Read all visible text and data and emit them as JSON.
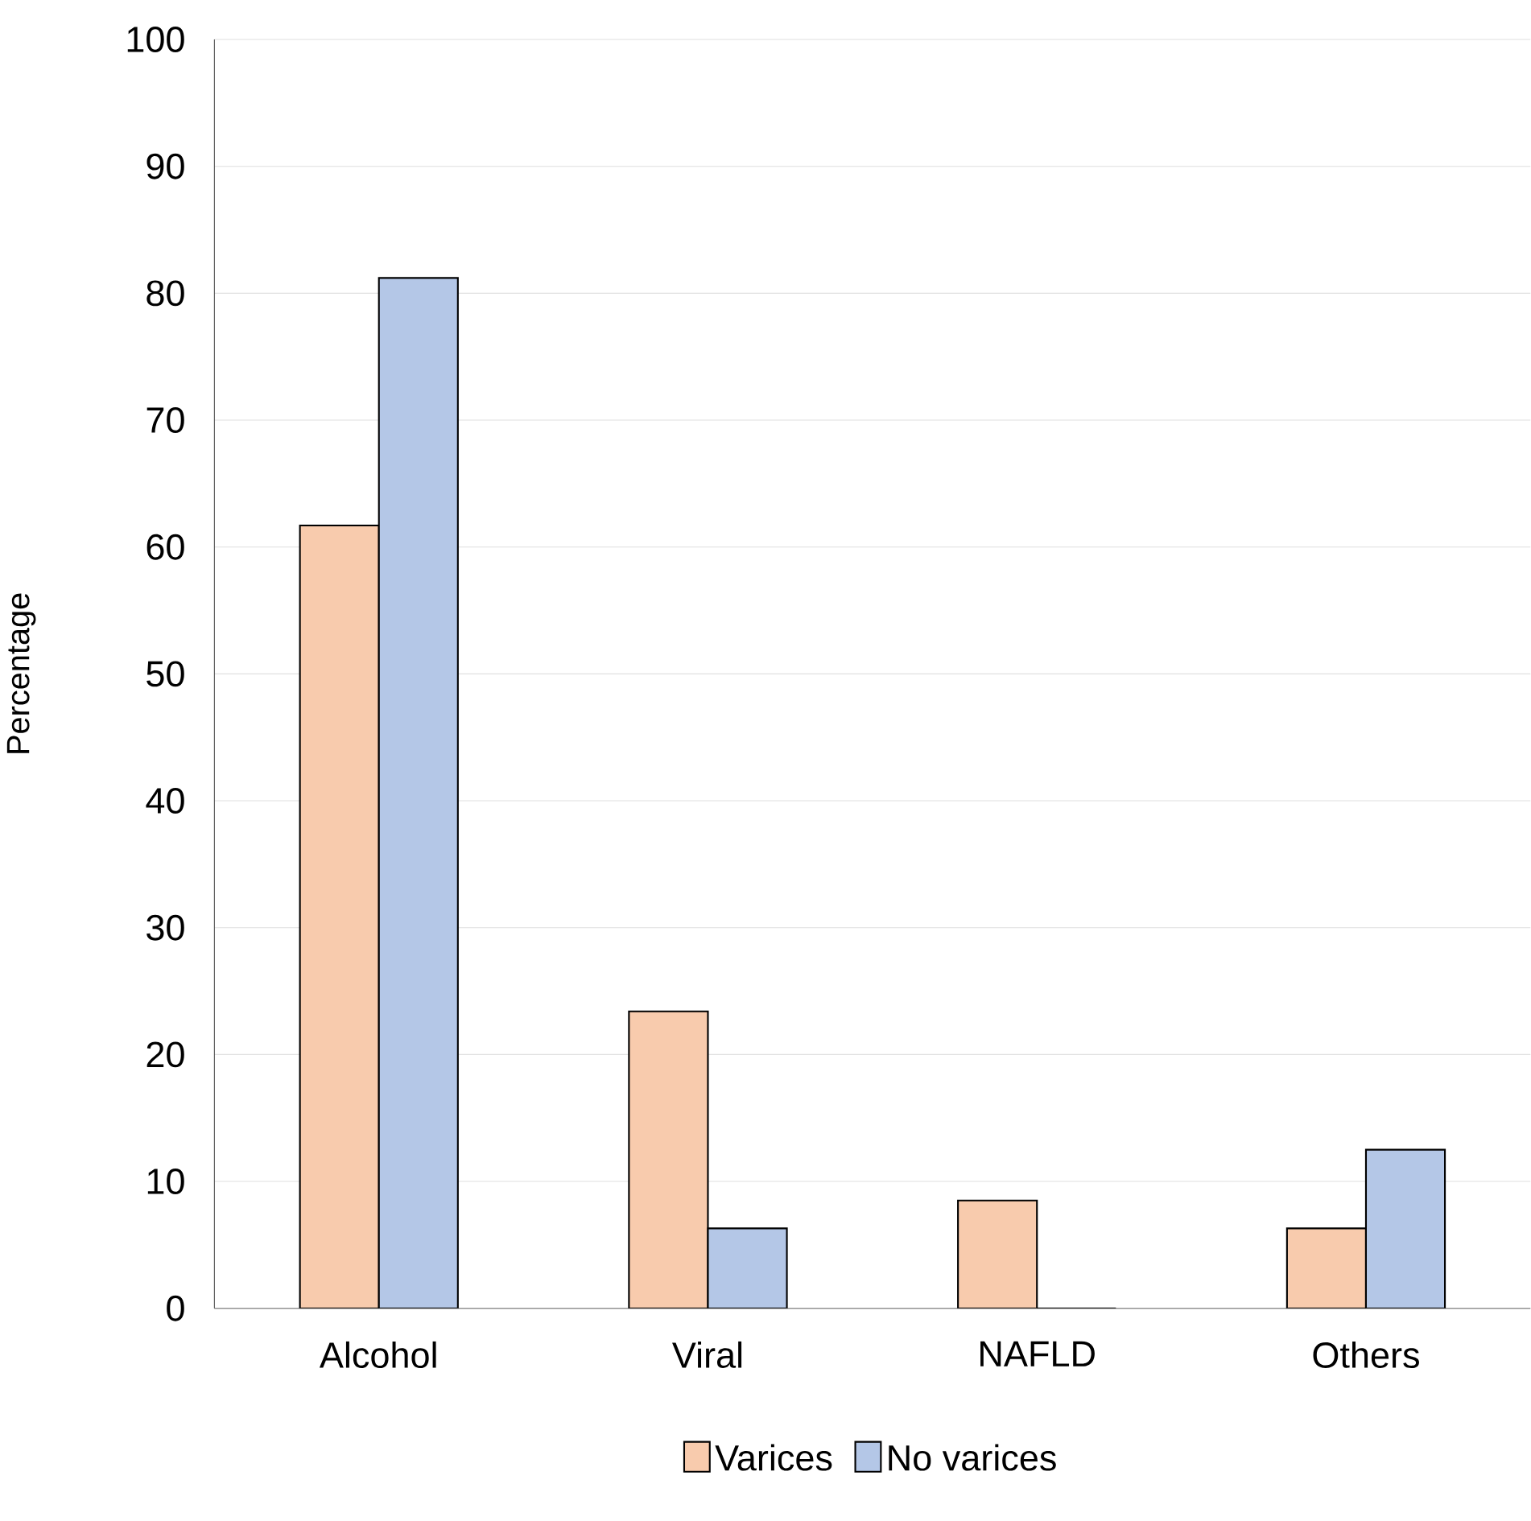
{
  "chart_data": {
    "type": "bar",
    "ylabel": "Percentage",
    "categories": [
      "Alcohol",
      "Viral",
      "NAFLD",
      "Others"
    ],
    "series": [
      {
        "name": "Varices",
        "color": "#f8cbad",
        "values": [
          61.7,
          23.4,
          8.5,
          6.3
        ]
      },
      {
        "name": "No varices",
        "color": "#b4c7e7",
        "values": [
          81.2,
          6.3,
          0,
          12.5
        ]
      }
    ],
    "ylim": [
      0,
      100
    ],
    "yticks": [
      0,
      10,
      20,
      30,
      40,
      50,
      60,
      70,
      80,
      90,
      100
    ],
    "grid": "y",
    "legend": "bottom"
  }
}
